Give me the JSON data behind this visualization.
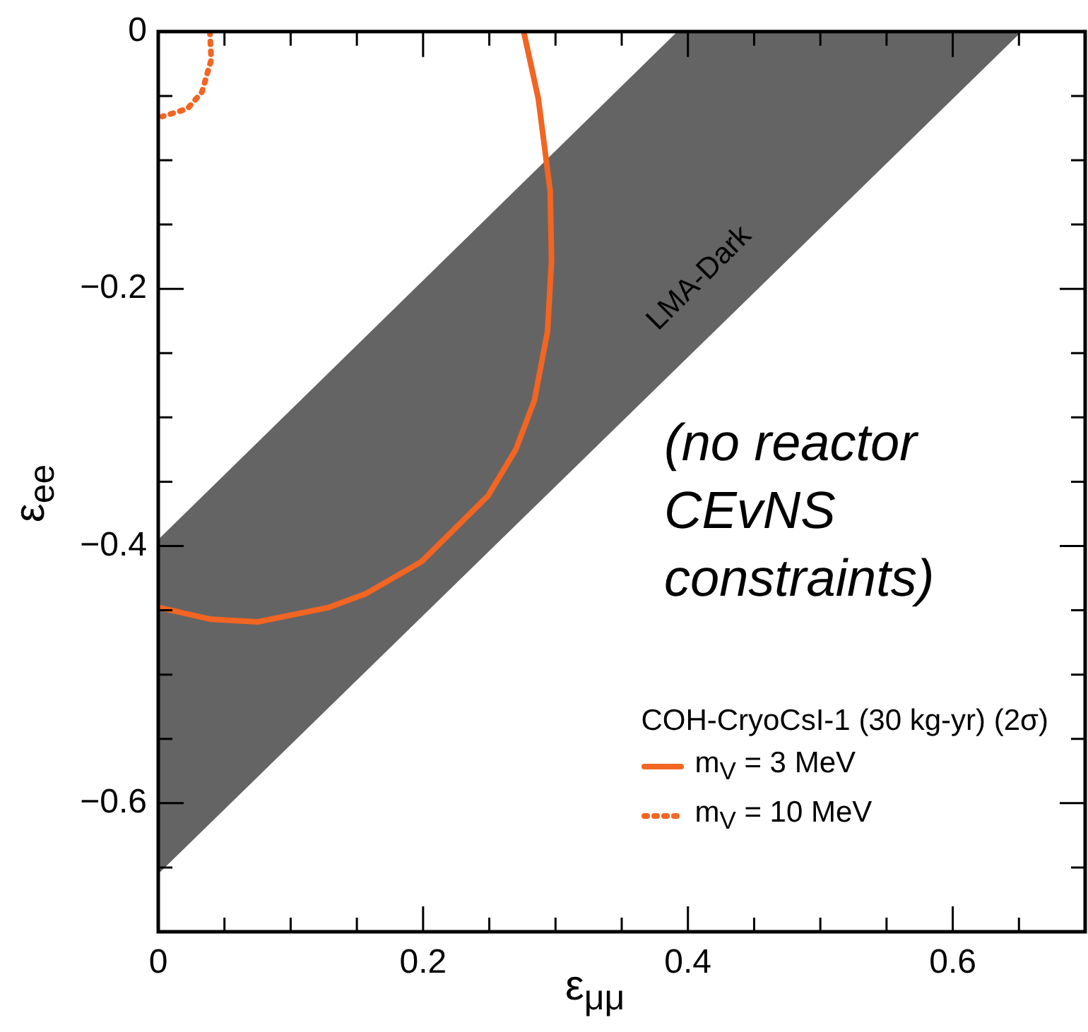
{
  "chart_data": {
    "type": "line",
    "xlabel": "ε$_{μμ}$",
    "ylabel": "ε$_{ee}$",
    "legend_title": "COH-CryoCsI-1 (30 kg-yr) (2σ)",
    "annotations": [
      "LMA-Dark",
      "(no reactor CEvNS constraints)"
    ],
    "xlim": [
      0,
      0.7
    ],
    "ylim": [
      -0.7,
      0
    ],
    "xticks": [
      0,
      {
        "value": 0.05,
        "label": null
      },
      {
        "value": 0.1,
        "label": null
      },
      {
        "value": 0.15,
        "label": null
      },
      0.2,
      {
        "value": 0.25,
        "label": null
      },
      {
        "value": 0.3,
        "label": null
      },
      {
        "value": 0.35,
        "label": null
      },
      0.4,
      {
        "value": 0.45,
        "label": null
      },
      {
        "value": 0.5,
        "label": null
      },
      {
        "value": 0.55,
        "label": null
      },
      0.6,
      {
        "value": 0.65,
        "label": null
      }
    ],
    "yticks": [
      0,
      {
        "value": -0.05,
        "label": null
      },
      {
        "value": -0.1,
        "label": null
      },
      {
        "value": -0.15,
        "label": null
      },
      {
        "value": -0.2,
        "label": "−0.2"
      },
      {
        "value": -0.25,
        "label": null
      },
      {
        "value": -0.3,
        "label": null
      },
      {
        "value": -0.35,
        "label": null
      },
      {
        "value": -0.4,
        "label": "−0.4"
      },
      {
        "value": -0.45,
        "label": null
      },
      {
        "value": -0.5,
        "label": null
      },
      {
        "value": -0.55,
        "label": null
      },
      {
        "value": -0.6,
        "label": "−0.6"
      },
      {
        "value": -0.65,
        "label": null
      }
    ],
    "grid": false,
    "legend": "bottom right",
    "marker": "none",
    "series": [
      {
        "type": "area",
        "color": "#646464",
        "x": [
          0,
          0.392,
          0.652,
          0
        ],
        "values": [
          -0.395,
          0,
          0,
          -0.655
        ]
      },
      {
        "name": "m$_{V}$ = 3 MeV",
        "color": "#f26522",
        "line_style": "solid",
        "x": [
          0.276,
          0.287,
          0.296,
          0.297,
          0.294,
          0.284,
          0.27,
          0.249,
          0.199,
          0.157,
          0.128,
          0.075,
          0.04,
          0.001
        ],
        "values": [
          0,
          -0.052,
          -0.124,
          -0.178,
          -0.233,
          -0.287,
          -0.325,
          -0.361,
          -0.412,
          -0.437,
          -0.448,
          -0.459,
          -0.457,
          -0.448
        ]
      },
      {
        "name": "m$_{V}$ = 10 MeV",
        "color": "#f26522",
        "line_style": "dotted",
        "x": [
          0.039,
          0.04,
          0.033,
          0.022,
          0.003
        ],
        "values": [
          0,
          -0.022,
          -0.047,
          -0.06,
          -0.066
        ]
      }
    ]
  }
}
